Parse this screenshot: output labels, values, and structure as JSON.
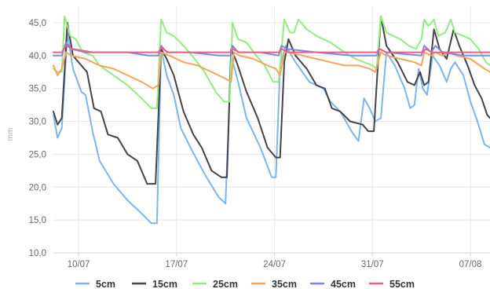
{
  "chart_data": {
    "type": "line",
    "ylabel": "mm",
    "ylim": [
      10,
      47.5
    ],
    "y_ticks": [
      "10,0",
      "15,0",
      "20,0",
      "25,0",
      "30,0",
      "35,0",
      "40,0",
      "45,0"
    ],
    "x_range_days": [
      8.2,
      39.4
    ],
    "x_ticks": [
      {
        "label": "10/07",
        "day": 10
      },
      {
        "label": "17/07",
        "day": 17
      },
      {
        "label": "24/07",
        "day": 24
      },
      {
        "label": "31/07",
        "day": 31
      },
      {
        "label": "07/08",
        "day": 38
      }
    ],
    "grid": true,
    "legend_position": "bottom",
    "series": [
      {
        "name": "5cm",
        "color": "#7cb5ec",
        "points": [
          [
            8.2,
            31.0
          ],
          [
            8.5,
            27.5
          ],
          [
            8.8,
            29.0
          ],
          [
            9.2,
            43.5
          ],
          [
            9.6,
            38.0
          ],
          [
            10.2,
            34.5
          ],
          [
            10.5,
            34.0
          ],
          [
            11.0,
            28.5
          ],
          [
            11.5,
            24.0
          ],
          [
            12.5,
            20.5
          ],
          [
            13.5,
            18.0
          ],
          [
            14.5,
            16.0
          ],
          [
            15.2,
            14.5
          ],
          [
            15.6,
            14.5
          ],
          [
            15.9,
            41.0
          ],
          [
            16.3,
            37.0
          ],
          [
            16.8,
            34.0
          ],
          [
            17.3,
            29.0
          ],
          [
            18.0,
            26.0
          ],
          [
            19.0,
            22.0
          ],
          [
            20.0,
            18.5
          ],
          [
            20.5,
            17.5
          ],
          [
            20.9,
            40.0
          ],
          [
            21.4,
            36.0
          ],
          [
            22.0,
            30.5
          ],
          [
            23.0,
            26.0
          ],
          [
            23.8,
            21.5
          ],
          [
            24.1,
            21.5
          ],
          [
            24.4,
            38.5
          ],
          [
            24.8,
            41.5
          ],
          [
            25.5,
            39.0
          ],
          [
            26.5,
            36.0
          ],
          [
            27.5,
            35.0
          ],
          [
            28.0,
            33.0
          ],
          [
            28.7,
            31.5
          ],
          [
            29.5,
            28.5
          ],
          [
            30.0,
            27.0
          ],
          [
            30.4,
            33.5
          ],
          [
            30.8,
            32.0
          ],
          [
            31.2,
            30.0
          ],
          [
            31.6,
            30.5
          ],
          [
            32.0,
            40.5
          ],
          [
            32.6,
            38.5
          ],
          [
            33.3,
            35.0
          ],
          [
            33.7,
            32.0
          ],
          [
            34.0,
            32.5
          ],
          [
            34.3,
            38.0
          ],
          [
            34.6,
            35.0
          ],
          [
            34.9,
            34.0
          ],
          [
            35.3,
            40.0
          ],
          [
            35.8,
            38.5
          ],
          [
            36.3,
            36.0
          ],
          [
            36.6,
            38.0
          ],
          [
            36.9,
            39.0
          ],
          [
            37.5,
            37.0
          ],
          [
            38.0,
            33.0
          ],
          [
            38.5,
            30.0
          ],
          [
            39.0,
            26.5
          ],
          [
            39.4,
            26.0
          ]
        ]
      },
      {
        "name": "15cm",
        "color": "#434348",
        "points": [
          [
            8.2,
            31.5
          ],
          [
            8.5,
            29.5
          ],
          [
            8.8,
            30.5
          ],
          [
            9.2,
            45.0
          ],
          [
            9.6,
            40.0
          ],
          [
            10.2,
            38.5
          ],
          [
            10.6,
            37.5
          ],
          [
            11.1,
            32.0
          ],
          [
            11.6,
            31.5
          ],
          [
            12.1,
            28.0
          ],
          [
            12.8,
            27.5
          ],
          [
            13.5,
            25.0
          ],
          [
            14.2,
            24.0
          ],
          [
            14.9,
            20.5
          ],
          [
            15.5,
            20.5
          ],
          [
            15.9,
            41.0
          ],
          [
            16.3,
            39.5
          ],
          [
            16.8,
            37.0
          ],
          [
            17.5,
            31.5
          ],
          [
            18.2,
            28.0
          ],
          [
            18.8,
            26.0
          ],
          [
            19.5,
            22.5
          ],
          [
            20.2,
            21.5
          ],
          [
            20.6,
            21.5
          ],
          [
            20.9,
            41.0
          ],
          [
            21.3,
            39.0
          ],
          [
            22.0,
            34.5
          ],
          [
            22.8,
            30.5
          ],
          [
            23.5,
            26.0
          ],
          [
            24.1,
            24.5
          ],
          [
            24.4,
            24.5
          ],
          [
            24.7,
            39.0
          ],
          [
            25.0,
            42.5
          ],
          [
            25.5,
            40.0
          ],
          [
            26.3,
            38.0
          ],
          [
            27.0,
            35.5
          ],
          [
            27.6,
            35.0
          ],
          [
            28.1,
            32.0
          ],
          [
            28.7,
            31.5
          ],
          [
            29.4,
            30.0
          ],
          [
            30.3,
            29.5
          ],
          [
            30.7,
            28.5
          ],
          [
            31.1,
            28.5
          ],
          [
            31.6,
            46.0
          ],
          [
            32.0,
            41.5
          ],
          [
            32.8,
            39.0
          ],
          [
            33.5,
            36.0
          ],
          [
            34.0,
            35.5
          ],
          [
            34.4,
            37.5
          ],
          [
            34.7,
            35.5
          ],
          [
            35.0,
            36.0
          ],
          [
            35.4,
            44.0
          ],
          [
            35.8,
            41.0
          ],
          [
            36.3,
            39.5
          ],
          [
            36.8,
            44.0
          ],
          [
            37.2,
            41.5
          ],
          [
            37.8,
            38.5
          ],
          [
            38.3,
            35.5
          ],
          [
            38.8,
            33.5
          ],
          [
            39.2,
            31.0
          ],
          [
            39.4,
            30.5
          ]
        ]
      },
      {
        "name": "25cm",
        "color": "#90ed7d",
        "points": [
          [
            8.2,
            38.0
          ],
          [
            8.5,
            37.5
          ],
          [
            8.8,
            37.5
          ],
          [
            9.0,
            46.0
          ],
          [
            9.4,
            43.0
          ],
          [
            9.8,
            42.5
          ],
          [
            10.3,
            40.5
          ],
          [
            11.0,
            40.0
          ],
          [
            11.5,
            38.5
          ],
          [
            12.5,
            37.0
          ],
          [
            13.5,
            35.5
          ],
          [
            14.5,
            33.5
          ],
          [
            15.2,
            32.0
          ],
          [
            15.6,
            32.0
          ],
          [
            15.9,
            45.5
          ],
          [
            16.3,
            43.5
          ],
          [
            16.8,
            43.0
          ],
          [
            17.5,
            41.5
          ],
          [
            18.3,
            39.5
          ],
          [
            19.0,
            37.5
          ],
          [
            19.8,
            34.5
          ],
          [
            20.4,
            33.0
          ],
          [
            20.8,
            33.0
          ],
          [
            21.0,
            45.0
          ],
          [
            21.4,
            42.5
          ],
          [
            22.0,
            42.0
          ],
          [
            22.7,
            40.0
          ],
          [
            23.3,
            38.5
          ],
          [
            23.9,
            36.0
          ],
          [
            24.3,
            36.0
          ],
          [
            24.7,
            45.5
          ],
          [
            25.1,
            43.5
          ],
          [
            25.4,
            43.5
          ],
          [
            25.7,
            45.5
          ],
          [
            26.3,
            44.0
          ],
          [
            27.0,
            43.0
          ],
          [
            28.0,
            42.0
          ],
          [
            29.0,
            40.5
          ],
          [
            29.8,
            39.5
          ],
          [
            30.4,
            39.0
          ],
          [
            31.0,
            38.5
          ],
          [
            31.3,
            38.0
          ],
          [
            31.6,
            46.0
          ],
          [
            32.0,
            43.5
          ],
          [
            32.5,
            43.0
          ],
          [
            33.0,
            42.5
          ],
          [
            33.6,
            41.5
          ],
          [
            34.1,
            41.0
          ],
          [
            34.5,
            42.5
          ],
          [
            34.7,
            45.5
          ],
          [
            35.0,
            44.5
          ],
          [
            35.4,
            45.5
          ],
          [
            35.7,
            43.0
          ],
          [
            36.2,
            43.5
          ],
          [
            36.6,
            45.5
          ],
          [
            36.9,
            43.5
          ],
          [
            37.5,
            43.0
          ],
          [
            38.0,
            42.5
          ],
          [
            38.6,
            41.0
          ],
          [
            39.1,
            39.0
          ],
          [
            39.4,
            38.5
          ]
        ]
      },
      {
        "name": "35cm",
        "color": "#f7a35c",
        "points": [
          [
            8.2,
            38.5
          ],
          [
            8.5,
            37.0
          ],
          [
            8.8,
            38.0
          ],
          [
            9.1,
            40.5
          ],
          [
            9.5,
            40.0
          ],
          [
            10.5,
            39.5
          ],
          [
            11.5,
            38.5
          ],
          [
            12.5,
            38.0
          ],
          [
            13.5,
            37.0
          ],
          [
            14.5,
            36.0
          ],
          [
            15.3,
            35.0
          ],
          [
            15.7,
            35.5
          ],
          [
            15.9,
            40.5
          ],
          [
            16.5,
            40.0
          ],
          [
            17.5,
            39.0
          ],
          [
            18.5,
            38.5
          ],
          [
            19.5,
            37.5
          ],
          [
            20.5,
            36.5
          ],
          [
            20.9,
            36.0
          ],
          [
            21.1,
            40.5
          ],
          [
            21.5,
            40.0
          ],
          [
            22.5,
            39.5
          ],
          [
            23.5,
            38.5
          ],
          [
            24.1,
            38.0
          ],
          [
            24.4,
            37.0
          ],
          [
            24.7,
            40.5
          ],
          [
            25.0,
            40.5
          ],
          [
            26.0,
            40.0
          ],
          [
            27.0,
            39.5
          ],
          [
            28.0,
            39.0
          ],
          [
            29.0,
            38.5
          ],
          [
            30.0,
            38.5
          ],
          [
            30.8,
            38.0
          ],
          [
            31.2,
            37.5
          ],
          [
            31.6,
            40.5
          ],
          [
            32.0,
            40.0
          ],
          [
            33.0,
            39.5
          ],
          [
            34.0,
            39.0
          ],
          [
            34.5,
            38.5
          ],
          [
            34.7,
            40.5
          ],
          [
            35.2,
            40.0
          ],
          [
            35.5,
            40.5
          ],
          [
            36.0,
            40.0
          ],
          [
            36.5,
            40.5
          ],
          [
            37.0,
            40.0
          ],
          [
            38.0,
            39.5
          ],
          [
            39.0,
            38.0
          ],
          [
            39.4,
            37.5
          ]
        ]
      },
      {
        "name": "45cm",
        "color": "#8085e9",
        "points": [
          [
            8.2,
            40.0
          ],
          [
            8.5,
            40.0
          ],
          [
            8.8,
            40.0
          ],
          [
            9.1,
            42.0
          ],
          [
            9.5,
            41.0
          ],
          [
            10.5,
            40.5
          ],
          [
            12.0,
            40.5
          ],
          [
            13.5,
            40.5
          ],
          [
            15.0,
            40.0
          ],
          [
            15.7,
            40.0
          ],
          [
            15.9,
            41.5
          ],
          [
            16.3,
            40.5
          ],
          [
            18.0,
            40.5
          ],
          [
            20.0,
            40.0
          ],
          [
            20.9,
            40.0
          ],
          [
            21.0,
            41.5
          ],
          [
            21.4,
            40.5
          ],
          [
            23.0,
            40.5
          ],
          [
            24.3,
            40.0
          ],
          [
            24.5,
            41.5
          ],
          [
            24.9,
            41.0
          ],
          [
            27.0,
            40.5
          ],
          [
            29.5,
            40.0
          ],
          [
            31.3,
            40.0
          ],
          [
            31.5,
            41.0
          ],
          [
            32.0,
            40.5
          ],
          [
            34.5,
            40.0
          ],
          [
            34.7,
            41.5
          ],
          [
            35.2,
            40.5
          ],
          [
            35.5,
            41.5
          ],
          [
            36.0,
            40.5
          ],
          [
            37.5,
            40.0
          ],
          [
            39.4,
            40.0
          ]
        ]
      },
      {
        "name": "55cm",
        "color": "#f15c80",
        "points": [
          [
            8.2,
            40.5
          ],
          [
            8.5,
            40.5
          ],
          [
            8.8,
            40.5
          ],
          [
            9.1,
            41.5
          ],
          [
            9.6,
            41.0
          ],
          [
            11.0,
            40.5
          ],
          [
            13.0,
            40.5
          ],
          [
            15.0,
            40.5
          ],
          [
            15.7,
            40.5
          ],
          [
            15.9,
            41.2
          ],
          [
            16.4,
            40.5
          ],
          [
            18.0,
            40.5
          ],
          [
            20.0,
            40.5
          ],
          [
            20.9,
            40.5
          ],
          [
            21.0,
            41.0
          ],
          [
            21.5,
            40.5
          ],
          [
            24.3,
            40.5
          ],
          [
            24.5,
            41.0
          ],
          [
            25.0,
            40.5
          ],
          [
            28.0,
            40.5
          ],
          [
            31.3,
            40.5
          ],
          [
            31.5,
            41.0
          ],
          [
            32.0,
            40.5
          ],
          [
            34.6,
            40.5
          ],
          [
            34.8,
            41.0
          ],
          [
            35.3,
            40.5
          ],
          [
            37.0,
            40.5
          ],
          [
            39.4,
            40.5
          ]
        ]
      }
    ]
  }
}
